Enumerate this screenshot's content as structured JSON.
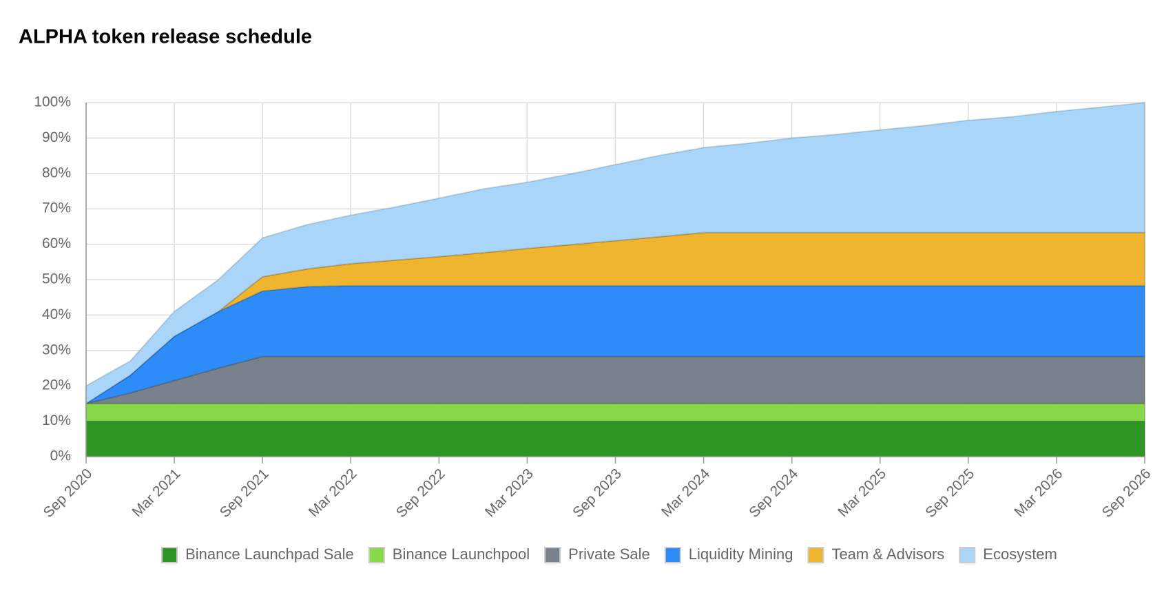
{
  "chart_data": {
    "type": "stacked-area",
    "title": "ALPHA token release schedule",
    "categories": [
      "Sep 2020",
      null,
      "Mar 2021",
      null,
      "Sep 2021",
      null,
      "Mar 2022",
      null,
      "Sep 2022",
      null,
      "Mar 2023",
      null,
      "Sep 2023",
      null,
      "Mar 2024",
      null,
      "Sep 2024",
      null,
      "Mar 2025",
      null,
      "Sep 2025",
      null,
      "Mar 2026",
      null,
      "Sep 2026"
    ],
    "series": [
      {
        "name": "Binance Launchpad Sale",
        "color": "#2e9622",
        "values": [
          10,
          10,
          10,
          10,
          10,
          10,
          10,
          10,
          10,
          10,
          10,
          10,
          10,
          10,
          10,
          10,
          10,
          10,
          10,
          10,
          10,
          10,
          10,
          10,
          10
        ]
      },
      {
        "name": "Binance Launchpool",
        "color": "#88d94a",
        "values": [
          5,
          5,
          5,
          5,
          5,
          5,
          5,
          5,
          5,
          5,
          5,
          5,
          5,
          5,
          5,
          5,
          5,
          5,
          5,
          5,
          5,
          5,
          5,
          5,
          5
        ]
      },
      {
        "name": "Private Sale",
        "color": "#78818c",
        "values": [
          0,
          3,
          6.5,
          10,
          13.3,
          13.3,
          13.3,
          13.3,
          13.3,
          13.3,
          13.3,
          13.3,
          13.3,
          13.3,
          13.3,
          13.3,
          13.3,
          13.3,
          13.3,
          13.3,
          13.3,
          13.3,
          13.3,
          13.3,
          13.3
        ]
      },
      {
        "name": "Liquidity Mining",
        "color": "#2d8cf8",
        "values": [
          0,
          5,
          12.5,
          16,
          18.5,
          19.7,
          20,
          20,
          20,
          20,
          20,
          20,
          20,
          20,
          20,
          20,
          20,
          20,
          20,
          20,
          20,
          20,
          20,
          20,
          20
        ]
      },
      {
        "name": "Team & Advisors",
        "color": "#f0b52e",
        "values": [
          0,
          0,
          0,
          0,
          4,
          5,
          6.2,
          7.2,
          8.2,
          9.3,
          10.5,
          11.6,
          12.7,
          13.8,
          15,
          15,
          15,
          15,
          15,
          15,
          15,
          15,
          15,
          15,
          15
        ]
      },
      {
        "name": "Ecosystem",
        "color": "#a9d6f8",
        "values": [
          5,
          4,
          7,
          9,
          11,
          12.5,
          13.7,
          15,
          16.5,
          18,
          18.7,
          20,
          21.5,
          23,
          24,
          25.2,
          26.7,
          27.7,
          29,
          30.2,
          31.7,
          32.7,
          34.2,
          35.4,
          36.7
        ]
      }
    ],
    "ylim": [
      0,
      100
    ],
    "yticks": [
      {
        "value": 0,
        "label": "0%"
      },
      {
        "value": 10,
        "label": "10%"
      },
      {
        "value": 20,
        "label": "20%"
      },
      {
        "value": 30,
        "label": "30%"
      },
      {
        "value": 40,
        "label": "40%"
      },
      {
        "value": 50,
        "label": "50%"
      },
      {
        "value": 60,
        "label": "60%"
      },
      {
        "value": 70,
        "label": "70%"
      },
      {
        "value": 80,
        "label": "80%"
      },
      {
        "value": 90,
        "label": "90%"
      },
      {
        "value": 100,
        "label": "100%"
      }
    ],
    "grid": true,
    "legend": "bottom"
  }
}
